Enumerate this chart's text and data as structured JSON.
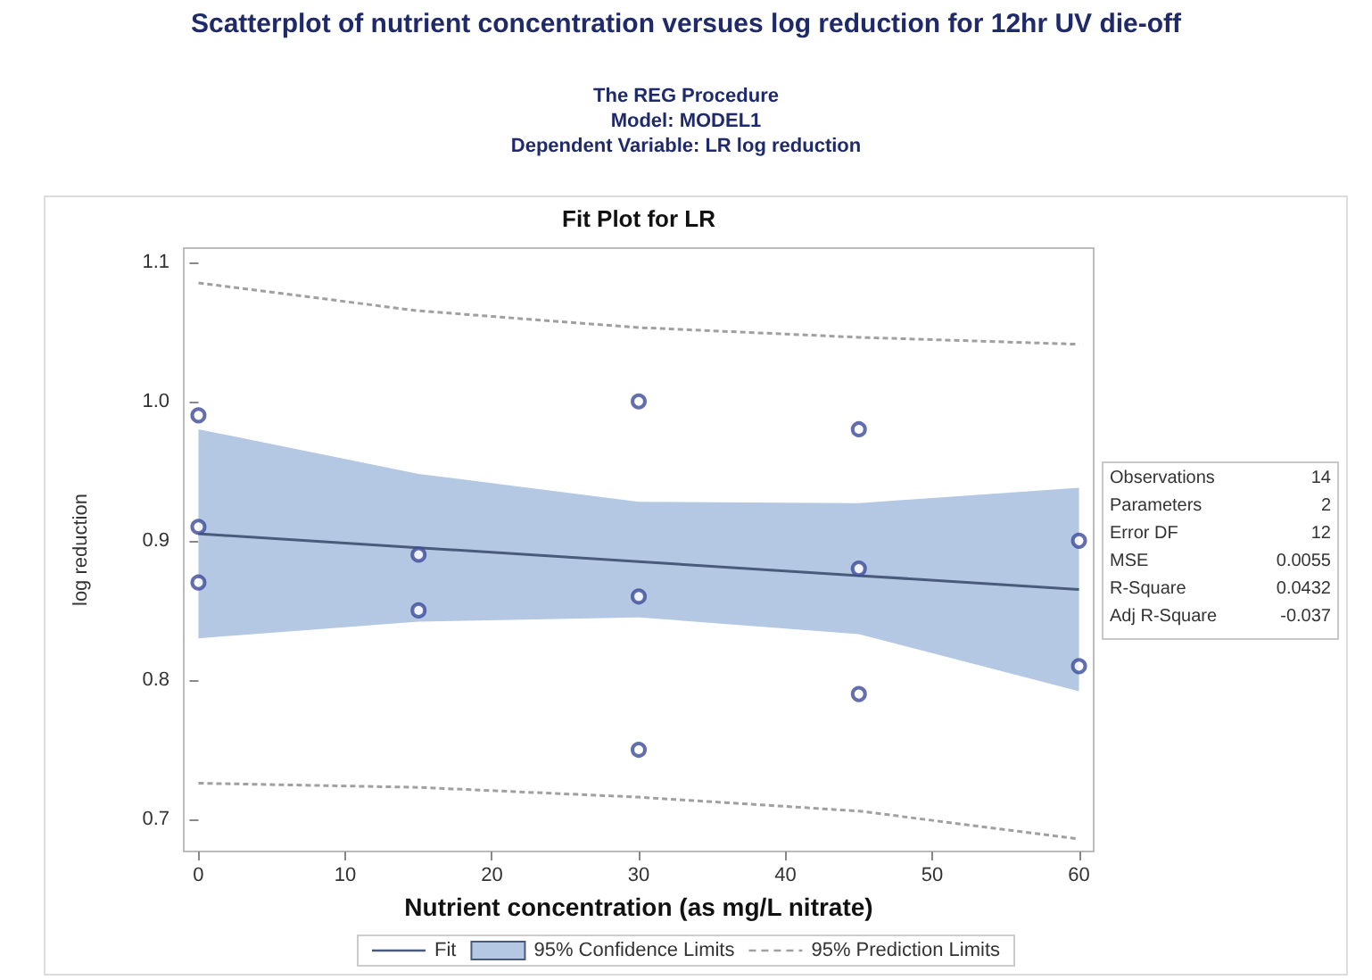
{
  "chart_data": {
    "type": "scatter",
    "title": "Scatterplot of nutrient concentration versues log reduction for 12hr UV die-off",
    "subtitle": "The REG Procedure\nModel: MODEL1\nDependent Variable: LR log reduction",
    "xlabel": "Nutrient concentration (as mg/L nitrate)",
    "ylabel": "log reduction",
    "annotations": [
      "Fit Plot for LR",
      "95% Confidence Limits",
      "Observations 14",
      "Parameters 2",
      "Error DF 12",
      "MSE 0.0055",
      "R-Square 0.0432",
      "Adj R-Square -0.037"
    ],
    "series": [
      {
        "name": "Fit",
        "type": "line",
        "color": "#4a5a7a",
        "line_style": "solid",
        "marker": "none",
        "x": [
          0,
          15,
          30,
          45,
          60
        ],
        "values": [
          0.905,
          0.895,
          0.885,
          0.875,
          0.865
        ],
        "lower": [
          0.83,
          0.842,
          0.845,
          0.833,
          0.792
        ],
        "upper": [
          0.98,
          0.948,
          0.928,
          0.927,
          0.938
        ]
      },
      {
        "name": "95% Prediction Limits",
        "type": "line",
        "color": "#a0a0a0",
        "line_style": "dashed",
        "marker": "none",
        "x": [
          0,
          15,
          30,
          45,
          60
        ],
        "values": [
          1.085,
          1.065,
          1.053,
          1.046,
          1.041
        ]
      },
      {
        "type": "line",
        "color": "#a0a0a0",
        "line_style": "dashed",
        "marker": "none",
        "x": [
          0,
          15,
          30,
          45,
          60
        ],
        "values": [
          0.726,
          0.723,
          0.716,
          0.706,
          0.686
        ]
      },
      {
        "color": "#3b4a99",
        "marker": "circle",
        "x": [
          0,
          0,
          0,
          15,
          15,
          30,
          30,
          30,
          45,
          45,
          45,
          60,
          60
        ],
        "values": [
          0.99,
          0.91,
          0.87,
          0.89,
          0.85,
          1.0,
          0.86,
          0.75,
          0.98,
          0.88,
          0.79,
          0.9,
          0.81
        ]
      }
    ],
    "xlim": [
      -1,
      61
    ],
    "xticks": [
      0,
      10,
      20,
      30,
      40,
      50,
      60
    ],
    "ylim": [
      0.677,
      1.11
    ],
    "yticks": [
      0.7,
      0.8,
      0.9,
      {
        "value": 1,
        "label": "1.0"
      },
      1.1
    ],
    "grid": false,
    "legend": "bottom"
  }
}
